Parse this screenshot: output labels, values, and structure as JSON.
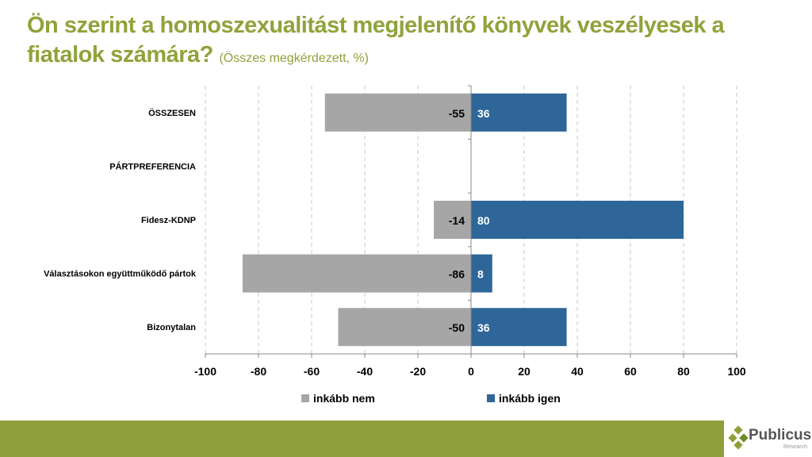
{
  "title": {
    "main": "Ön szerint a homoszexualitást megjelenítő könyvek veszélyesek a fiatalok számára?",
    "sub": "(Összes megkérdezett, %)"
  },
  "chart_data": {
    "type": "bar",
    "orientation": "horizontal-diverging",
    "categories": [
      "ÖSSZESEN",
      "PÁRTPREFERENCIA",
      "Fidesz-KDNP",
      "Választásokon együttműködő pártok",
      "Bizonytalan"
    ],
    "series": [
      {
        "name": "inkább nem",
        "color": "#a6a6a6",
        "values": [
          -55,
          null,
          -14,
          -86,
          -50
        ]
      },
      {
        "name": "inkább igen",
        "color": "#2f6699",
        "values": [
          36,
          null,
          80,
          8,
          36
        ]
      }
    ],
    "xlim": [
      -100,
      100
    ],
    "xticks": [
      -100,
      -80,
      -60,
      -40,
      -20,
      0,
      20,
      40,
      60,
      80,
      100
    ],
    "grid": true,
    "legend": "bottom"
  },
  "logo": {
    "name": "Publicus",
    "tagline": "Research"
  }
}
